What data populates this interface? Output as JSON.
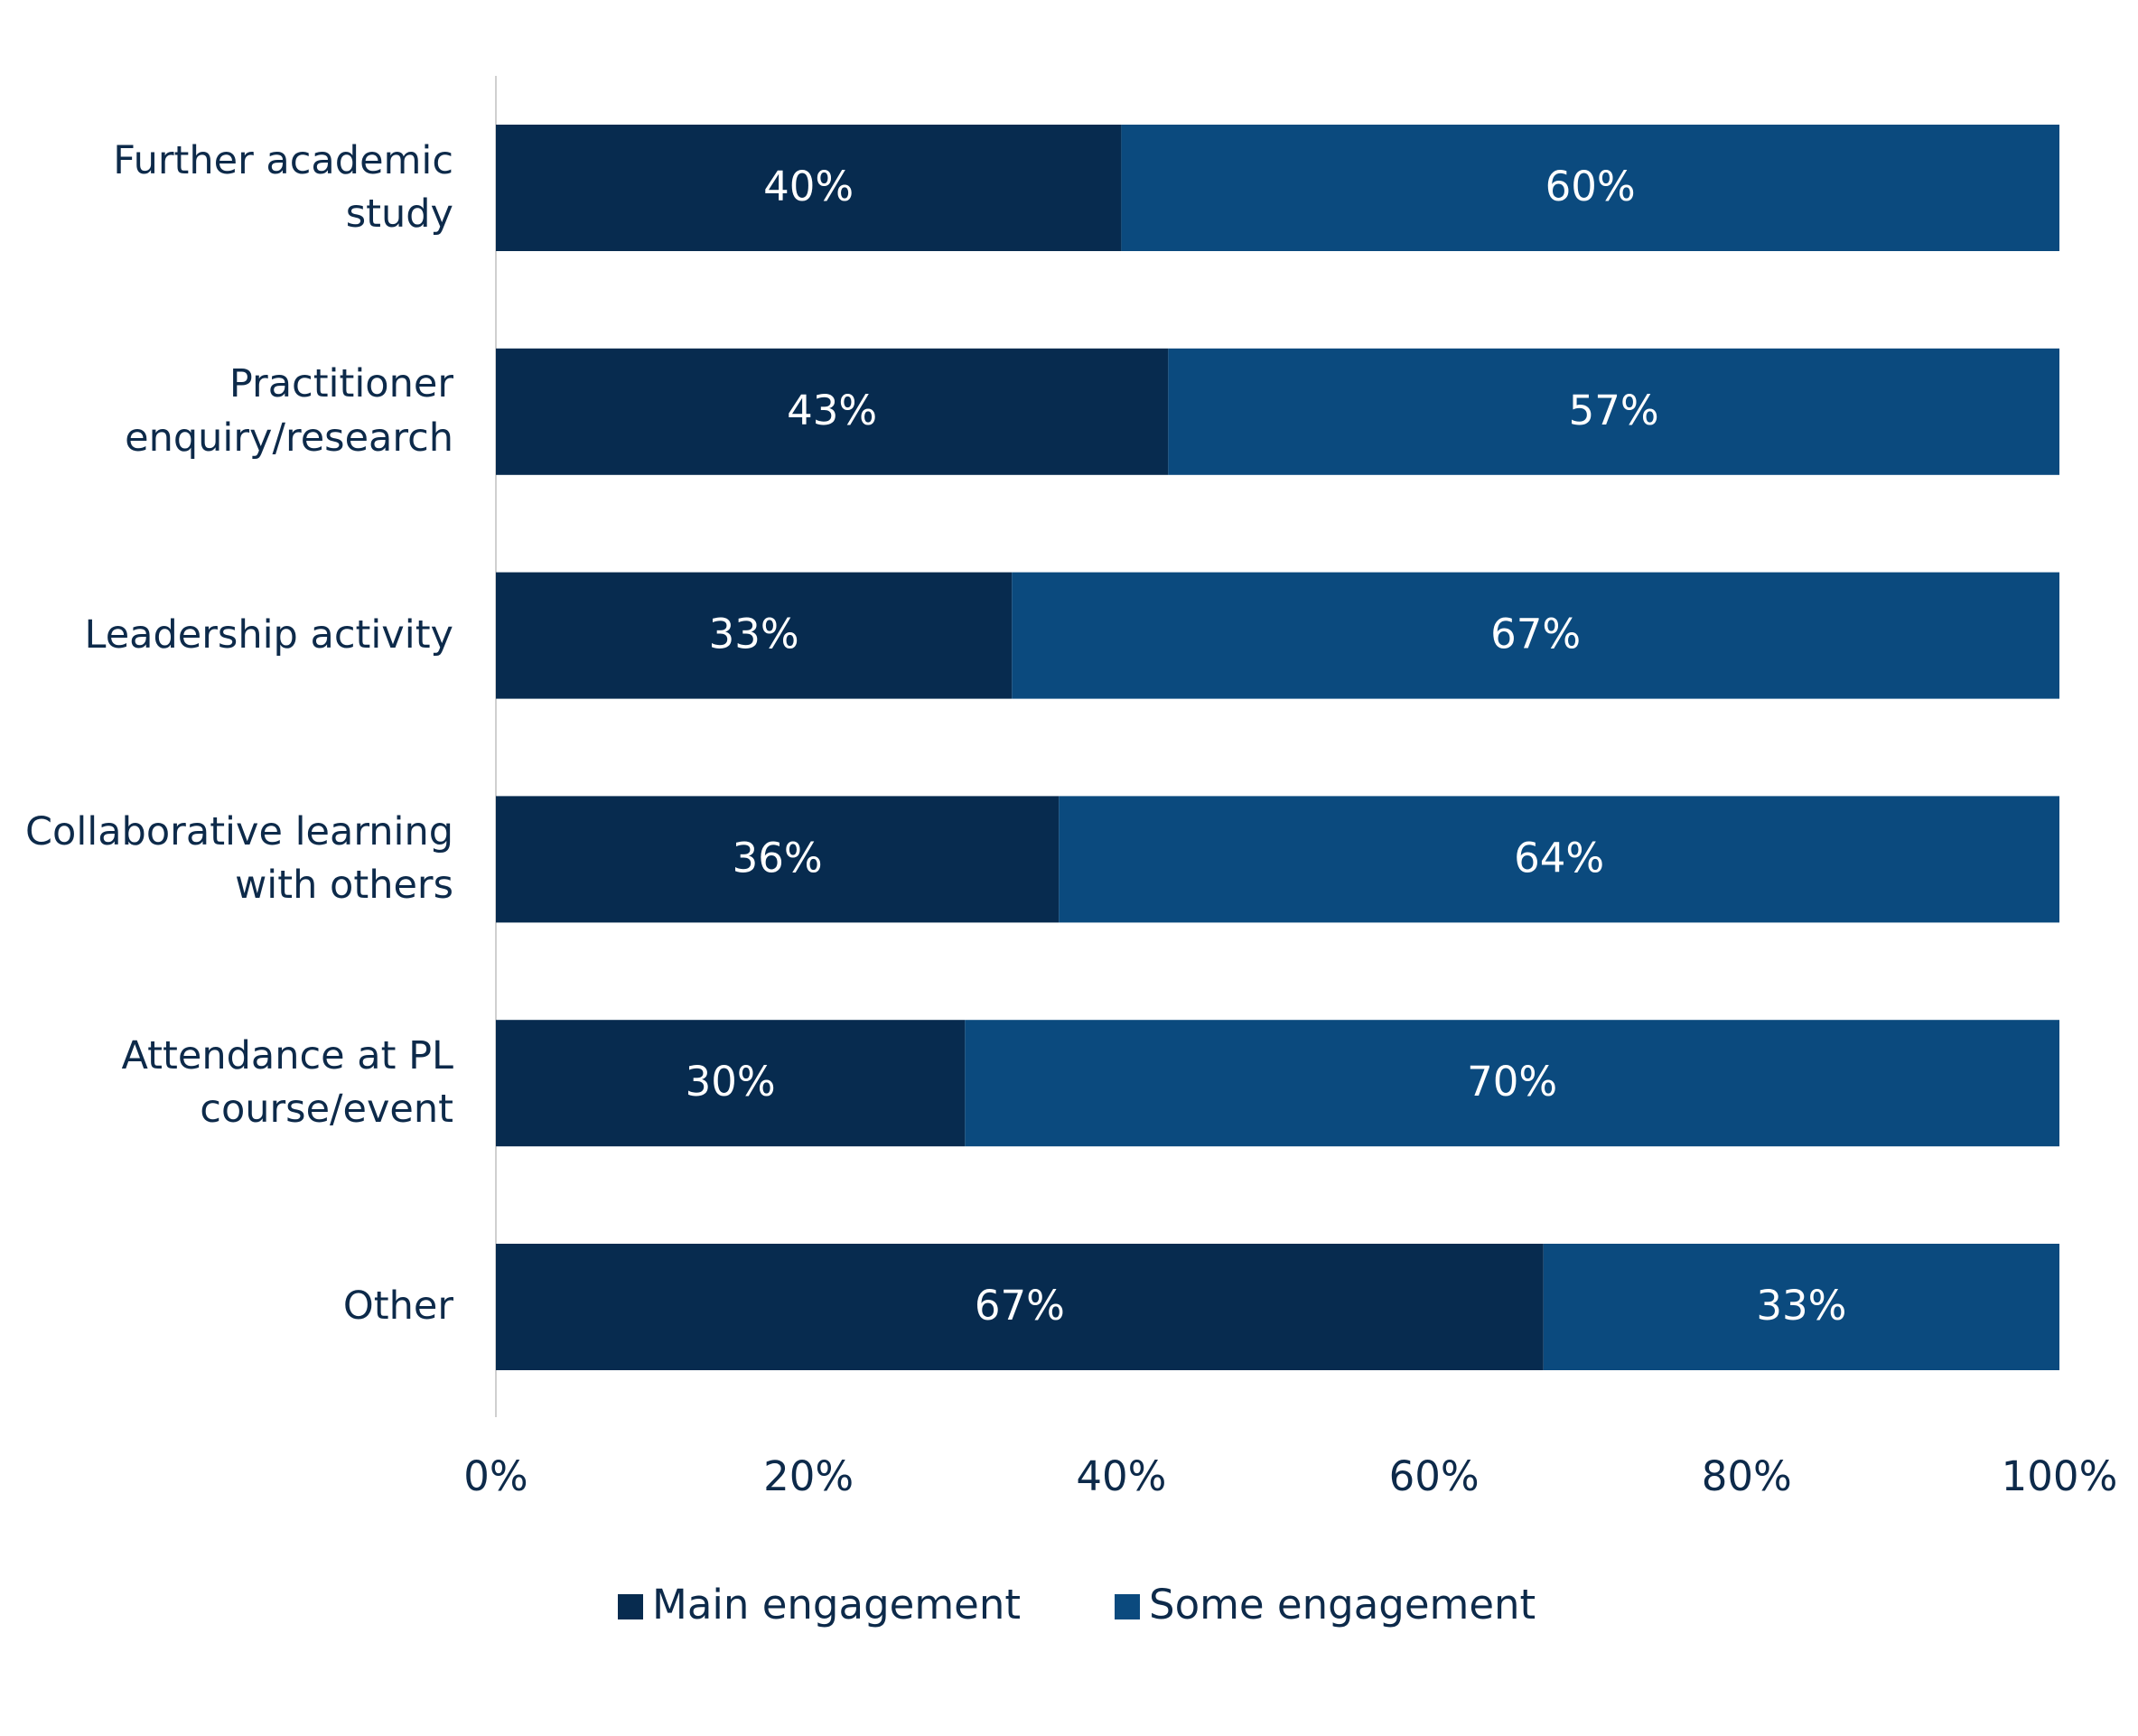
{
  "chart_data": {
    "type": "stacked_barh",
    "categories": [
      "Further academic study",
      "Practitioner enquiry/research",
      "Leadership activity",
      "Collaborative learning with others",
      "Attendance at PL course/event",
      "Other"
    ],
    "series": [
      {
        "name": "Main engagement",
        "color": "#072b4f",
        "values": [
          40,
          43,
          33,
          36,
          30,
          67
        ],
        "value_labels": [
          "40%",
          "43%",
          "33%",
          "36%",
          "30%",
          "67%"
        ]
      },
      {
        "name": "Some engagement",
        "color": "#0b4a7e",
        "values": [
          60,
          57,
          67,
          64,
          70,
          33
        ],
        "value_labels": [
          "60%",
          "57%",
          "67%",
          "64%",
          "70%",
          "33%"
        ]
      }
    ],
    "xlim": [
      0,
      100
    ],
    "xticks": [
      {
        "value": 0,
        "label": "0%"
      },
      {
        "value": 20,
        "label": "20%"
      },
      {
        "value": 40,
        "label": "40%"
      },
      {
        "value": 60,
        "label": "60%"
      },
      {
        "value": 80,
        "label": "80%"
      },
      {
        "value": 100,
        "label": "100%"
      }
    ],
    "legend": "bottom"
  }
}
